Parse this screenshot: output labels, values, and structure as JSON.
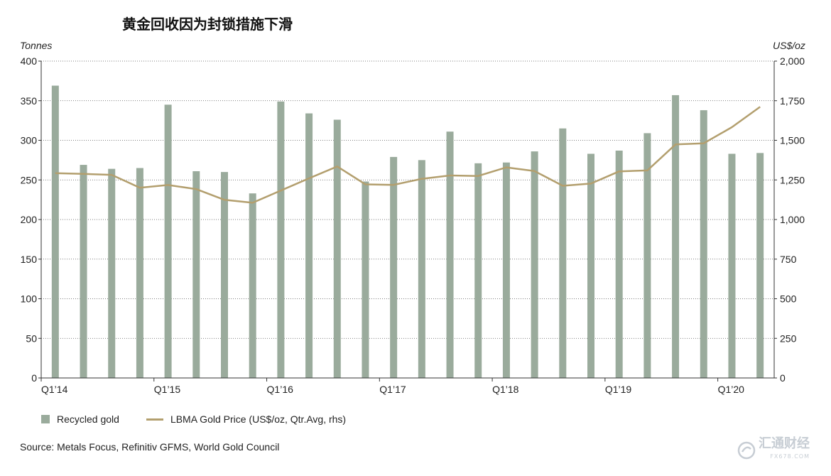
{
  "chart_data": {
    "type": "bar+line",
    "title": "黄金回收因为封锁措施下滑",
    "ylabel_left": "Tonnes",
    "ylabel_right": "US$/oz",
    "ylim_left": [
      0,
      400
    ],
    "ylim_right": [
      0,
      2000
    ],
    "yticks_left": [
      "0",
      "50",
      "100",
      "150",
      "200",
      "250",
      "300",
      "350",
      "400"
    ],
    "yticks_right": [
      "0",
      "250",
      "500",
      "750",
      "1,000",
      "1,250",
      "1,500",
      "1,750",
      "2,000"
    ],
    "x_tick_labels": [
      {
        "index": 0,
        "label": "Q1’14"
      },
      {
        "index": 4,
        "label": "Q1’15"
      },
      {
        "index": 8,
        "label": "Q1’16"
      },
      {
        "index": 12,
        "label": "Q1’17"
      },
      {
        "index": 16,
        "label": "Q1’18"
      },
      {
        "index": 20,
        "label": "Q1’19"
      },
      {
        "index": 24,
        "label": "Q1’20"
      }
    ],
    "series": [
      {
        "name": "Recycled gold",
        "type": "bar",
        "axis": "left",
        "color": "#9aab9c",
        "values": [
          369,
          269,
          264,
          265,
          345,
          261,
          260,
          233,
          349,
          334,
          326,
          248,
          279,
          275,
          311,
          271,
          272,
          286,
          315,
          283,
          287,
          309,
          357,
          338,
          283,
          284
        ]
      },
      {
        "name": "LBMA Gold Price (US$/oz, Qtr.Avg, rhs)",
        "type": "line",
        "axis": "right",
        "color": "#b39f6e",
        "values": [
          1293,
          1288,
          1282,
          1201,
          1218,
          1192,
          1124,
          1106,
          1183,
          1260,
          1335,
          1222,
          1219,
          1257,
          1278,
          1275,
          1329,
          1306,
          1213,
          1227,
          1304,
          1310,
          1474,
          1481,
          1583,
          1711
        ]
      }
    ]
  },
  "legend": {
    "bar_label": "Recycled gold",
    "line_label": "LBMA Gold Price (US$/oz, Qtr.Avg, rhs)"
  },
  "source": "Source: Metals Focus, Refinitiv GFMS, World Gold Council",
  "watermark": {
    "text": "汇通财经",
    "subtext": "FX678.COM",
    "icon": "swirl-logo-icon"
  },
  "colors": {
    "bar": "#9aab9c",
    "line": "#b39f6e",
    "axis": "#333333",
    "grid": "#555555"
  }
}
